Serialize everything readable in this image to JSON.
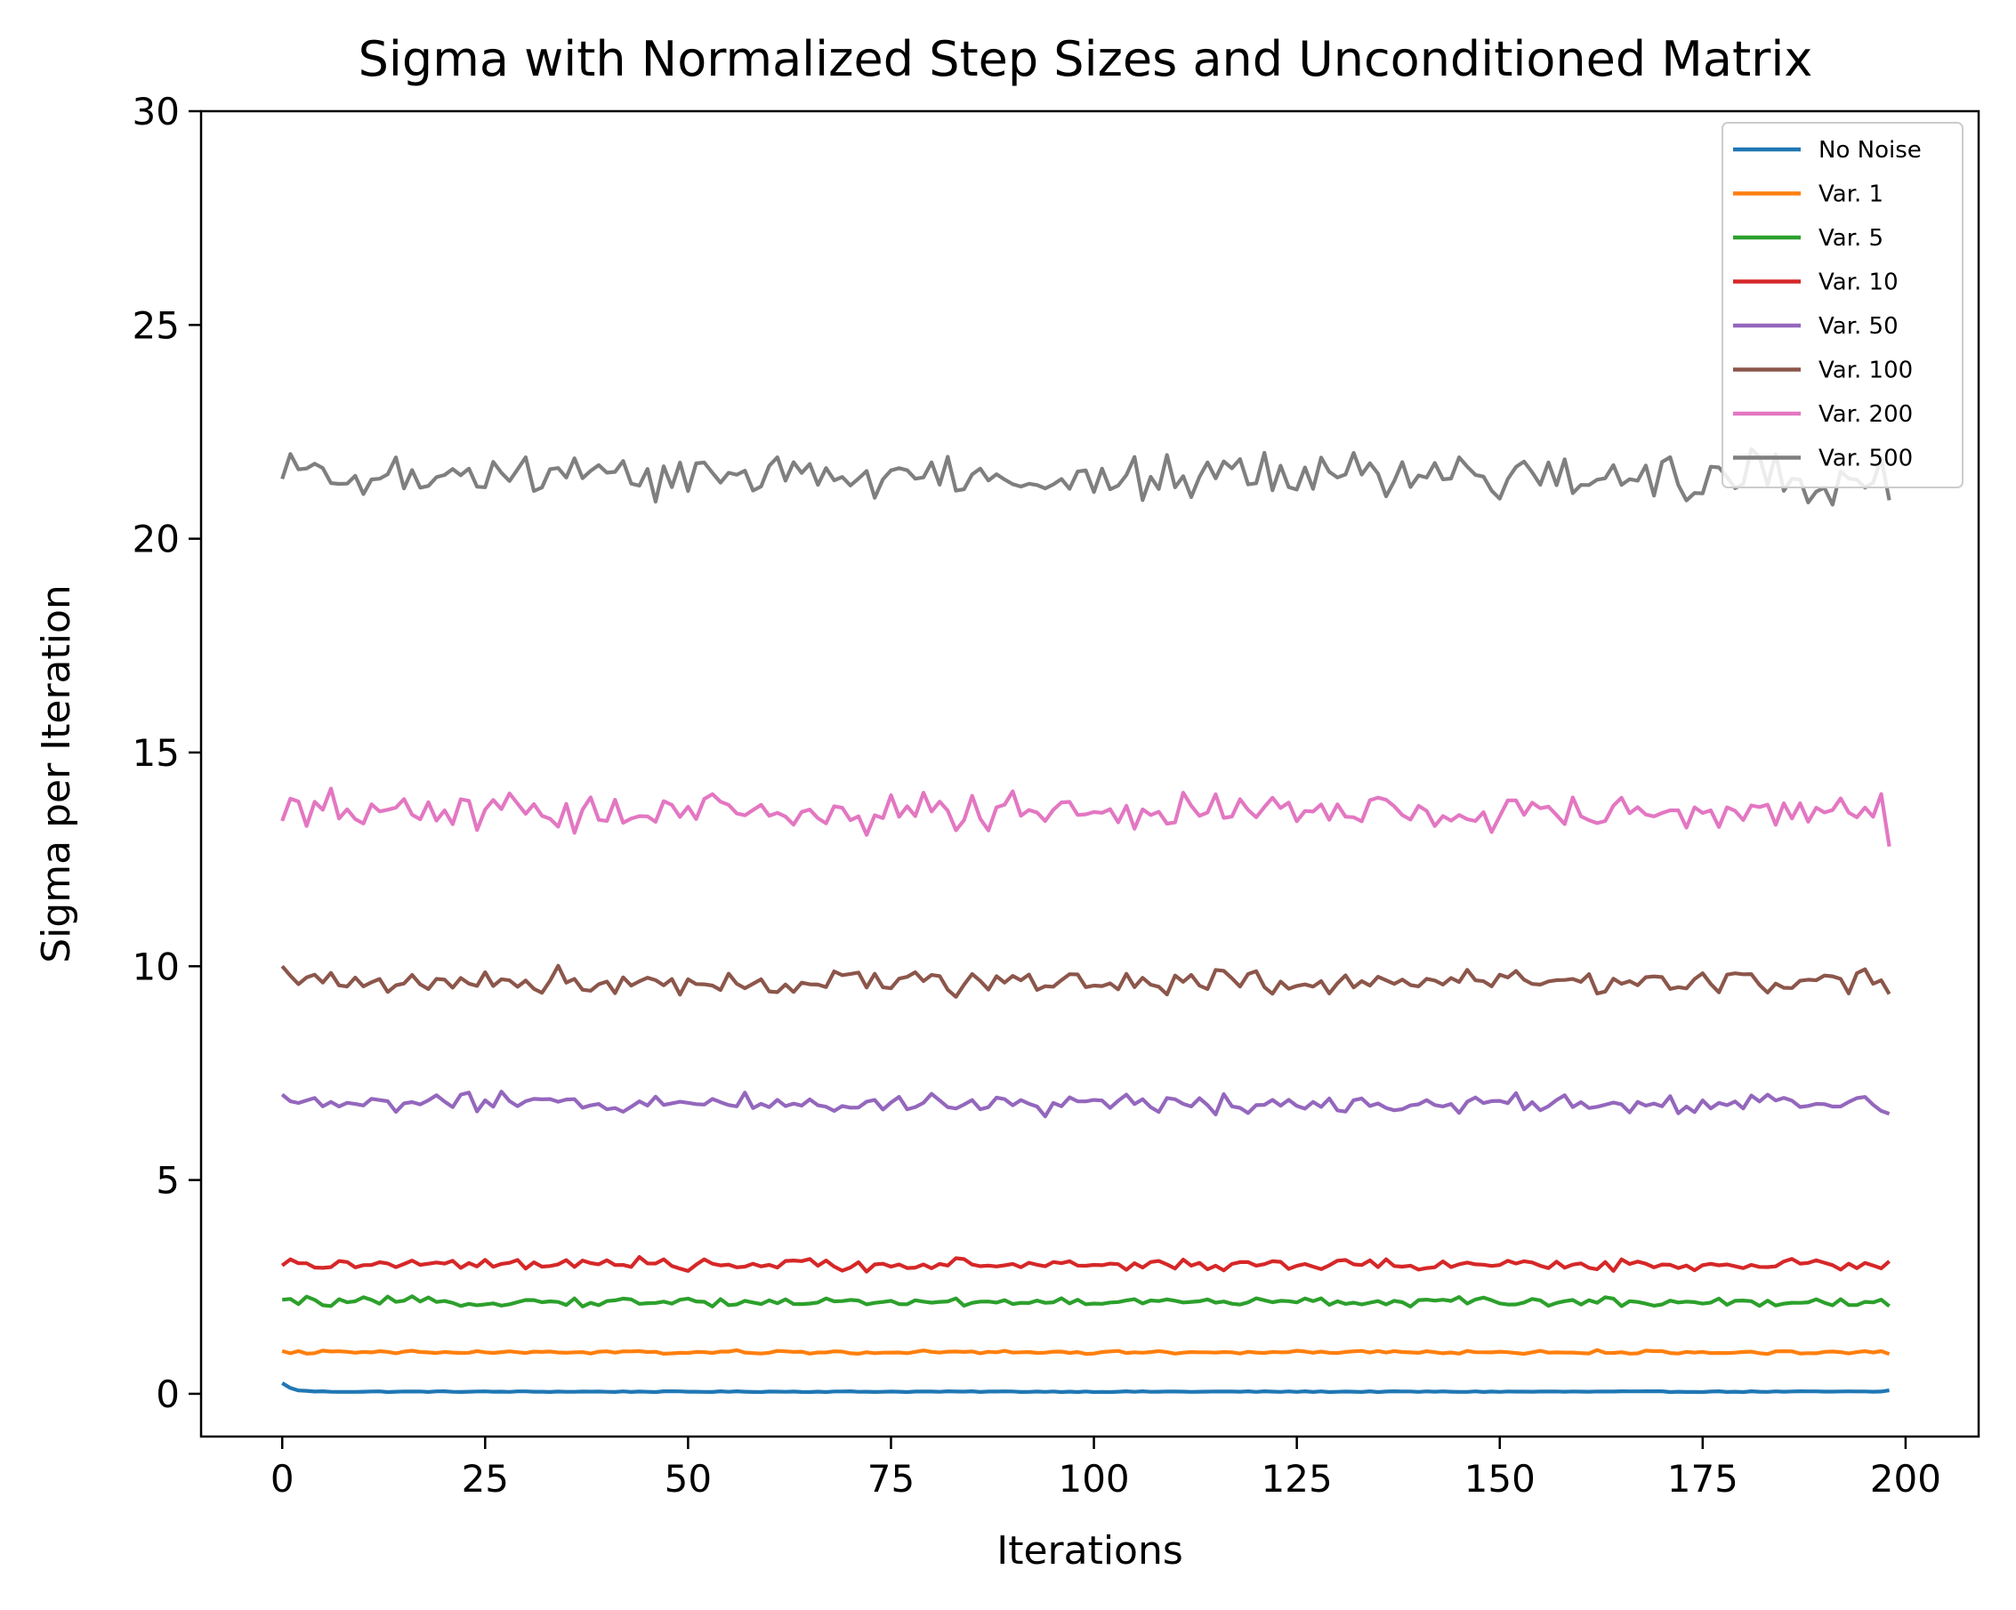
{
  "chart_data": {
    "type": "line",
    "title": "Sigma with Normalized Step Sizes and Unconditioned Matrix",
    "xlabel": "Iterations",
    "ylabel": "Sigma per Iteration",
    "xlim": [
      -10,
      209
    ],
    "ylim": [
      -1,
      30
    ],
    "xticks": [
      0,
      25,
      50,
      75,
      100,
      125,
      150,
      175,
      200
    ],
    "yticks": [
      0,
      5,
      10,
      15,
      20,
      25,
      30
    ],
    "grid": false,
    "legend_position": "top-right",
    "n_points": 199,
    "series": [
      {
        "name": "No Noise",
        "color": "#1f77b4",
        "base": 0.05,
        "amp": 0.02,
        "start": 0.25,
        "decay": true,
        "end": 0.08
      },
      {
        "name": "Var. 1",
        "color": "#ff7f0e",
        "base": 0.97,
        "amp": 0.06,
        "start": 1.0,
        "end": 0.93
      },
      {
        "name": "Var. 5",
        "color": "#2ca02c",
        "base": 2.15,
        "amp": 0.15,
        "start": 2.2,
        "end": 2.05
      },
      {
        "name": "Var. 10",
        "color": "#d62728",
        "base": 3.02,
        "amp": 0.2,
        "start": 3.0,
        "end": 3.1
      },
      {
        "name": "Var. 50",
        "color": "#9467bd",
        "base": 6.8,
        "amp": 0.35,
        "start": 7.0,
        "end": 6.55
      },
      {
        "name": "Var. 100",
        "color": "#8c564b",
        "base": 9.65,
        "amp": 0.45,
        "start": 10.0,
        "end": 9.35
      },
      {
        "name": "Var. 200",
        "color": "#e377c2",
        "base": 13.6,
        "amp": 0.7,
        "start": 13.4,
        "end": 12.8
      },
      {
        "name": "Var. 500",
        "color": "#7f7f7f",
        "base": 21.45,
        "amp": 0.85,
        "start": 21.4,
        "end": 20.9
      }
    ]
  }
}
